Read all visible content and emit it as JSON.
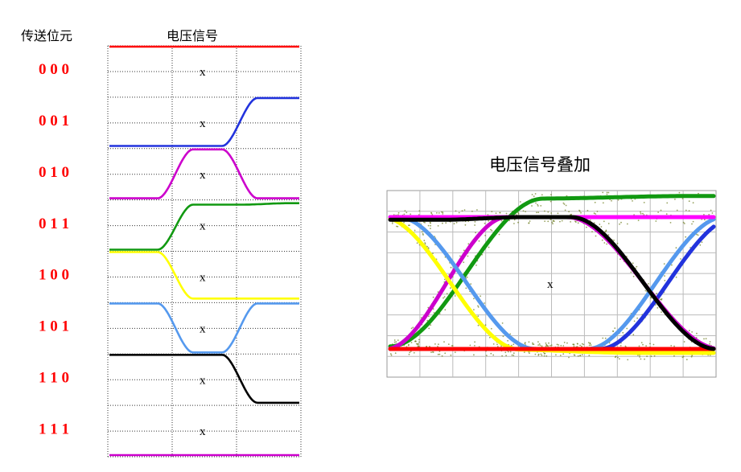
{
  "left_panel": {
    "bits_header": "传送位元",
    "signal_header": "电压信号",
    "marker": "x",
    "rows": [
      {
        "bits": "0 0 0",
        "color": "#ff0000",
        "shape": "flat-high"
      },
      {
        "bits": "0 0 1",
        "color": "#2233dd",
        "shape": "rise"
      },
      {
        "bits": "0 1 0",
        "color": "#cc00cc",
        "shape": "bump-up"
      },
      {
        "bits": "0 1 1",
        "color": "#119911",
        "shape": "rise"
      },
      {
        "bits": "1 0 0",
        "color": "#ffff00",
        "shape": "fall"
      },
      {
        "bits": "1 0 1",
        "color": "#5599ee",
        "shape": "dip-down"
      },
      {
        "bits": "1 1 0",
        "color": "#000000",
        "shape": "fall"
      },
      {
        "bits": "1 1 1",
        "color": "#cc00cc",
        "shape": "flat-low"
      }
    ]
  },
  "right_panel": {
    "title": "电压信号叠加",
    "marker": "x",
    "noise_color": "#6b7a1c"
  }
}
